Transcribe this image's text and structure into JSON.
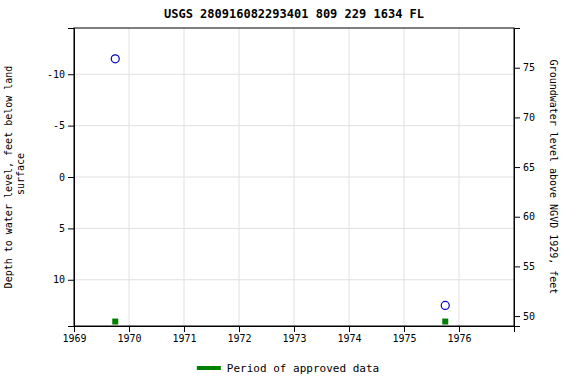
{
  "chart_data": {
    "type": "scatter",
    "title": "USGS 280916082293401 809 229 1634 FL",
    "ylabel": "Depth to water level, feet below land\n surface",
    "y2label": "Groundwater level above NGVD 1929, feet",
    "x": [
      1969.75,
      1975.75
    ],
    "series": [
      {
        "values": [
          -11.5,
          12.5
        ],
        "color": "#0000cc",
        "marker": "circle"
      },
      {
        "name": "Period of approved data",
        "values": [
          14.065,
          14.065
        ],
        "color": "#008000",
        "marker": "square"
      }
    ],
    "xlim": [
      1969,
      1977
    ],
    "xticks": [
      1969,
      1970,
      1971,
      1972,
      1973,
      1974,
      1975,
      1976
    ],
    "ylim": [
      14.5,
      -14.5
    ],
    "yticks": [
      -10,
      -5,
      0,
      5,
      10
    ],
    "y2lim": [
      49,
      79
    ],
    "y2ticks": [
      50,
      55,
      60,
      65,
      70,
      75
    ],
    "grid": true,
    "legend": "bottom"
  }
}
